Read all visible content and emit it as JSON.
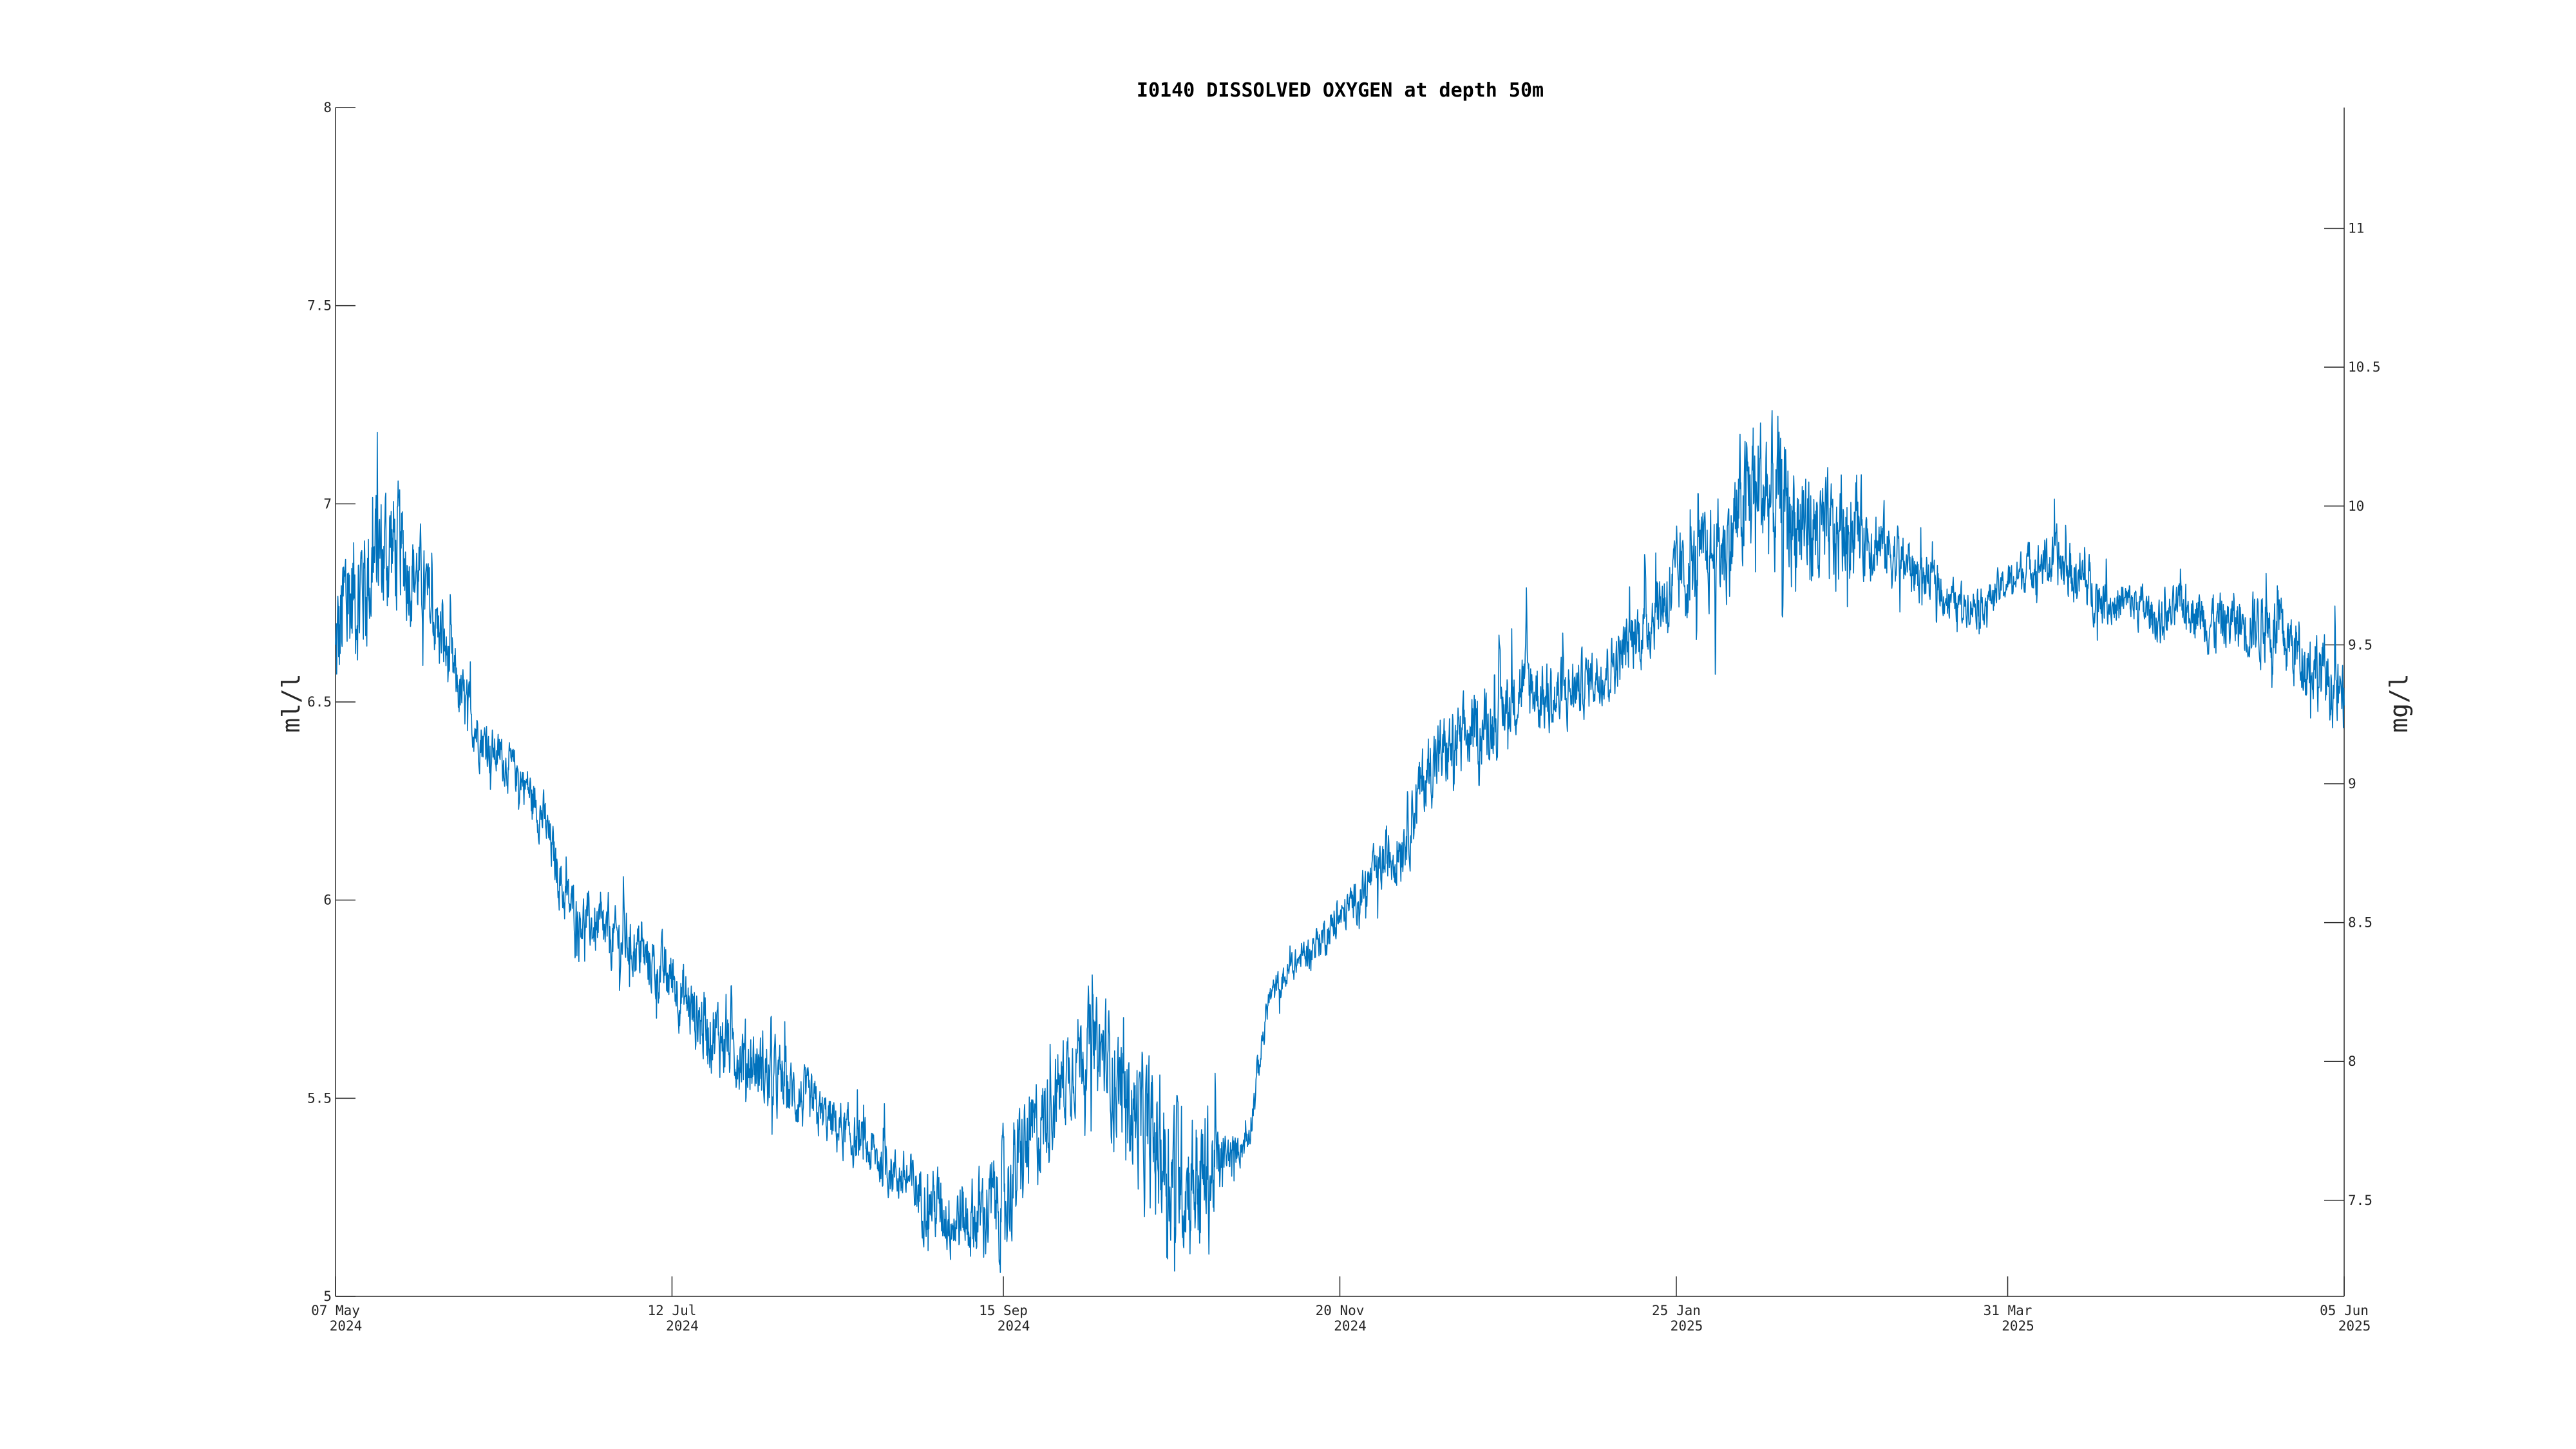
{
  "chart_data": {
    "type": "line",
    "title": "I0140 DISSOLVED OXYGEN at depth 50m",
    "ylabel": "ml/l",
    "y2label": "mg/l",
    "ylim": [
      5,
      8
    ],
    "y2lim": [
      7.154,
      11.435
    ],
    "xlim": [
      "2024-05-07",
      "2025-06-05"
    ],
    "grid": false,
    "color": "#0072BD",
    "yticks": [
      5,
      5.5,
      6,
      6.5,
      7,
      7.5,
      8
    ],
    "y2ticks": [
      7.5,
      8,
      8.5,
      9,
      9.5,
      10,
      10.5,
      11
    ],
    "xticks": [
      {
        "date": "2024-05-07",
        "line1": "07 May",
        "line2": "2024"
      },
      {
        "date": "2024-07-12",
        "line1": "12 Jul",
        "line2": "2024"
      },
      {
        "date": "2024-09-15",
        "line1": "15 Sep",
        "line2": "2024"
      },
      {
        "date": "2024-11-20",
        "line1": "20 Nov",
        "line2": "2024"
      },
      {
        "date": "2025-01-25",
        "line1": "25 Jan",
        "line2": "2025"
      },
      {
        "date": "2025-03-31",
        "line1": "31 Mar",
        "line2": "2025"
      },
      {
        "date": "2025-06-05",
        "line1": "05 Jun",
        "line2": "2025"
      }
    ],
    "series": [
      {
        "x": [
          "2024-05-07",
          "2024-05-09",
          "2024-05-12",
          "2024-05-15",
          "2024-05-18",
          "2024-05-21",
          "2024-05-24",
          "2024-05-28",
          "2024-06-01",
          "2024-06-05",
          "2024-06-09",
          "2024-06-13",
          "2024-06-17",
          "2024-06-21",
          "2024-06-25",
          "2024-06-29",
          "2024-07-03",
          "2024-07-07",
          "2024-07-12",
          "2024-07-17",
          "2024-07-22",
          "2024-07-27",
          "2024-08-01",
          "2024-08-06",
          "2024-08-11",
          "2024-08-16",
          "2024-08-21",
          "2024-08-26",
          "2024-08-31",
          "2024-09-05",
          "2024-09-10",
          "2024-09-15",
          "2024-09-19",
          "2024-09-23",
          "2024-09-27",
          "2024-10-01",
          "2024-10-05",
          "2024-10-09",
          "2024-10-13",
          "2024-10-17",
          "2024-10-21",
          "2024-10-25",
          "2024-10-29",
          "2024-11-02",
          "2024-11-06",
          "2024-11-09",
          "2024-11-12",
          "2024-11-16",
          "2024-11-20",
          "2024-11-26",
          "2024-12-02",
          "2024-12-08",
          "2024-12-14",
          "2024-12-20",
          "2024-12-26",
          "2025-01-01",
          "2025-01-07",
          "2025-01-13",
          "2025-01-19",
          "2025-01-25",
          "2025-01-30",
          "2025-02-04",
          "2025-02-09",
          "2025-02-14",
          "2025-02-19",
          "2025-02-24",
          "2025-03-01",
          "2025-03-06",
          "2025-03-11",
          "2025-03-16",
          "2025-03-21",
          "2025-03-26",
          "2025-03-31",
          "2025-04-05",
          "2025-04-10",
          "2025-04-15",
          "2025-04-20",
          "2025-04-25",
          "2025-04-30",
          "2025-05-05",
          "2025-05-10",
          "2025-05-15",
          "2025-05-20",
          "2025-05-25",
          "2025-05-30",
          "2025-06-05"
        ],
        "y": [
          6.6,
          6.75,
          6.8,
          6.85,
          6.9,
          6.85,
          6.8,
          6.65,
          6.5,
          6.4,
          6.35,
          6.3,
          6.2,
          6.0,
          5.95,
          5.9,
          5.9,
          5.85,
          5.8,
          5.7,
          5.65,
          5.6,
          5.55,
          5.5,
          5.45,
          5.4,
          5.35,
          5.3,
          5.25,
          5.2,
          5.2,
          5.25,
          5.35,
          5.45,
          5.55,
          5.65,
          5.6,
          5.5,
          5.4,
          5.35,
          5.3,
          5.3,
          5.35,
          5.4,
          5.75,
          5.8,
          5.85,
          5.9,
          5.95,
          6.05,
          6.15,
          6.35,
          6.4,
          6.45,
          6.55,
          6.5,
          6.55,
          6.6,
          6.7,
          6.8,
          6.85,
          6.9,
          7.05,
          7.0,
          6.95,
          6.9,
          6.95,
          6.9,
          6.85,
          6.8,
          6.75,
          6.75,
          6.8,
          6.85,
          6.85,
          6.8,
          6.75,
          6.75,
          6.7,
          6.75,
          6.7,
          6.7,
          6.7,
          6.65,
          6.6,
          6.5
        ],
        "amp": [
          0.2,
          0.2,
          0.18,
          0.2,
          0.18,
          0.15,
          0.12,
          0.1,
          0.08,
          0.07,
          0.06,
          0.06,
          0.07,
          0.07,
          0.07,
          0.08,
          0.08,
          0.08,
          0.08,
          0.1,
          0.1,
          0.1,
          0.1,
          0.08,
          0.07,
          0.07,
          0.07,
          0.07,
          0.1,
          0.1,
          0.12,
          0.15,
          0.15,
          0.13,
          0.12,
          0.12,
          0.15,
          0.15,
          0.2,
          0.2,
          0.2,
          0.2,
          0.05,
          0.05,
          0.04,
          0.04,
          0.04,
          0.05,
          0.05,
          0.06,
          0.1,
          0.1,
          0.1,
          0.1,
          0.1,
          0.1,
          0.08,
          0.08,
          0.1,
          0.12,
          0.12,
          0.15,
          0.2,
          0.2,
          0.18,
          0.15,
          0.12,
          0.1,
          0.08,
          0.06,
          0.05,
          0.05,
          0.05,
          0.06,
          0.08,
          0.08,
          0.06,
          0.06,
          0.06,
          0.06,
          0.08,
          0.08,
          0.1,
          0.1,
          0.1,
          0.1
        ]
      }
    ]
  }
}
